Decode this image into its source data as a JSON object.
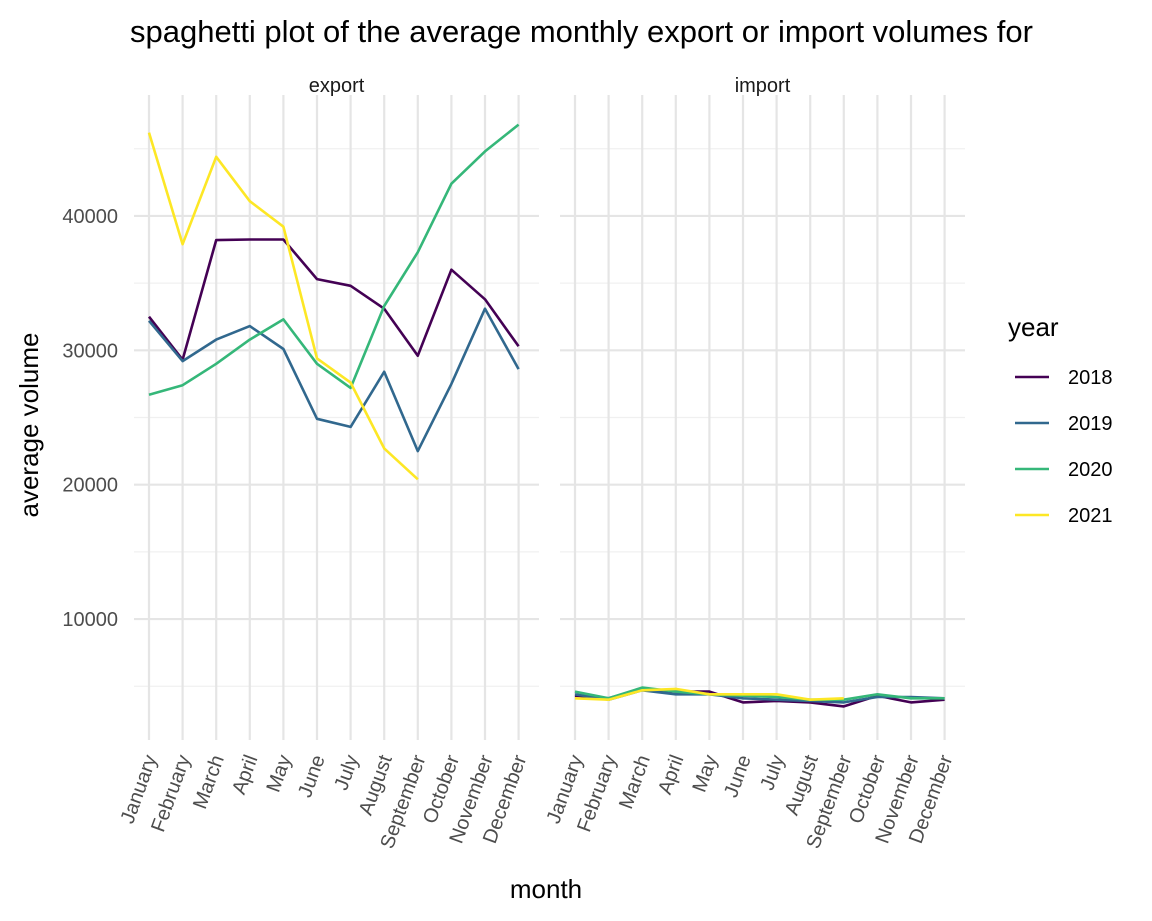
{
  "title": "spaghetti plot of the average monthly export or import volumes for",
  "colors": {
    "2018": "#440154",
    "2019": "#31688e",
    "2020": "#35b779",
    "2021": "#fde725"
  },
  "chart_data": {
    "type": "line",
    "title": "spaghetti plot of the average monthly export or import volumes for",
    "xlabel": "month",
    "ylabel": "average volume",
    "ylim": [
      1000,
      49000
    ],
    "yticks": [
      10000,
      20000,
      30000,
      40000
    ],
    "grid": true,
    "legend_title": "year",
    "legend_position": "right",
    "categories": [
      "January",
      "February",
      "March",
      "April",
      "May",
      "June",
      "July",
      "August",
      "September",
      "October",
      "November",
      "December"
    ],
    "panels": [
      {
        "name": "export",
        "series": [
          {
            "name": "2018",
            "color": "#440154",
            "values": [
              32500,
              29300,
              38200,
              38250,
              38250,
              35300,
              34800,
              33100,
              29600,
              36000,
              33800,
              30300
            ]
          },
          {
            "name": "2019",
            "color": "#31688e",
            "values": [
              32200,
              29200,
              30800,
              31800,
              30100,
              24900,
              24300,
              28400,
              22500,
              27500,
              33100,
              28600
            ]
          },
          {
            "name": "2020",
            "color": "#35b779",
            "values": [
              26700,
              27400,
              29000,
              30800,
              32300,
              29000,
              27200,
              33300,
              37300,
              42400,
              44800,
              46800
            ]
          },
          {
            "name": "2021",
            "color": "#fde725",
            "values": [
              46200,
              37900,
              44400,
              41100,
              39200,
              29400,
              27600,
              22700,
              20400,
              null,
              null,
              null
            ]
          }
        ]
      },
      {
        "name": "import",
        "series": [
          {
            "name": "2018",
            "color": "#440154",
            "values": [
              4300,
              4100,
              4800,
              4600,
              4600,
              3800,
              3900,
              3800,
              3500,
              4300,
              3800,
              4000
            ]
          },
          {
            "name": "2019",
            "color": "#31688e",
            "values": [
              4400,
              4000,
              4700,
              4400,
              4400,
              4100,
              4000,
              3900,
              3800,
              4200,
              4200,
              4100
            ]
          },
          {
            "name": "2020",
            "color": "#35b779",
            "values": [
              4600,
              4100,
              4900,
              4600,
              4400,
              4300,
              4200,
              4000,
              4000,
              4400,
              4100,
              4100
            ]
          },
          {
            "name": "2021",
            "color": "#fde725",
            "values": [
              4100,
              4000,
              4700,
              4800,
              4400,
              4400,
              4400,
              4000,
              4100,
              null,
              null,
              null
            ]
          }
        ]
      }
    ]
  }
}
